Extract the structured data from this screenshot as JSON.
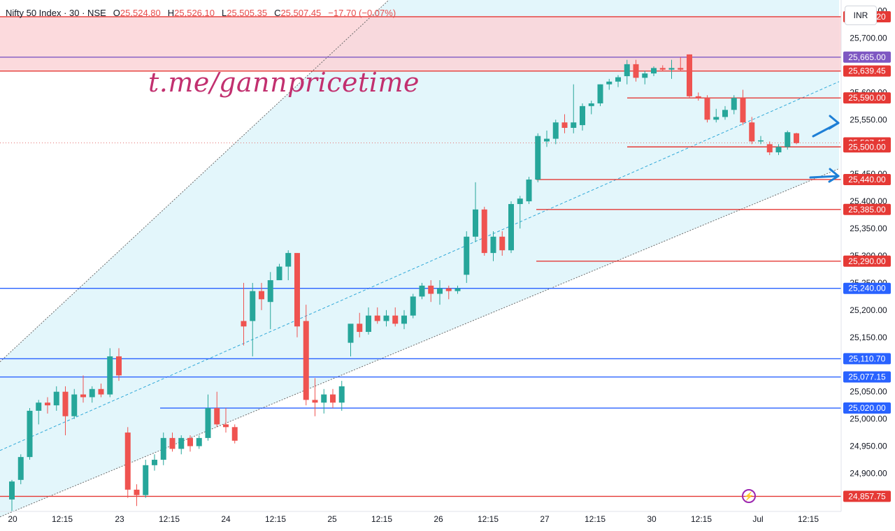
{
  "header": {
    "symbol": "Nifty 50 Index · 30 · NSE",
    "o_label": "O",
    "o_value": "25,524.80",
    "h_label": "H",
    "h_value": "25,526.10",
    "l_label": "L",
    "l_value": "25,505.35",
    "c_label": "C",
    "c_value": "25,507.45",
    "change": "−17.70 (−0.07%)"
  },
  "currency_button": "INR",
  "watermark": "t.me/gannpricetime",
  "lightning_icon": "lightning-icon",
  "colors": {
    "up": "#26a69a",
    "down": "#ef5350",
    "channel_fill": "#e3f6fb",
    "resistance_zone": "#fbd3d7",
    "red_level": "#e53935",
    "blue_level": "#2962ff",
    "purple_level": "#7e57c2",
    "arrow": "#1e7fd6",
    "brand": "#c2306f"
  },
  "chart_data": {
    "type": "candlestick",
    "interval": "30",
    "ylim": [
      24830,
      25770
    ],
    "y_ticks": [
      24900,
      24950,
      25000,
      25050,
      25150,
      25200,
      25250,
      25300,
      25350,
      25400,
      25450,
      25550,
      25600,
      25700,
      25750
    ],
    "x_tick_labels": [
      "20",
      "12:15",
      "23",
      "12:15",
      "24",
      "12:15",
      "25",
      "12:15",
      "26",
      "12:15",
      "27",
      "12:15",
      "30",
      "12:15",
      "Jul",
      "12:15"
    ],
    "candles": [
      [
        24852,
        24888,
        24830,
        24885
      ],
      [
        24888,
        24935,
        24880,
        24930
      ],
      [
        24930,
        25020,
        24925,
        25015
      ],
      [
        25015,
        25035,
        24990,
        25030
      ],
      [
        25030,
        25040,
        25010,
        25025
      ],
      [
        25025,
        25060,
        25015,
        25050
      ],
      [
        25050,
        25060,
        24970,
        25005
      ],
      [
        25005,
        25055,
        25000,
        25045
      ],
      [
        25045,
        25080,
        25030,
        25040
      ],
      [
        25040,
        25060,
        25030,
        25055
      ],
      [
        25055,
        25065,
        25040,
        25045
      ],
      [
        25045,
        25130,
        25040,
        25115
      ],
      [
        25115,
        25130,
        25070,
        25080
      ],
      [
        24975,
        24985,
        24855,
        24870
      ],
      [
        24870,
        24880,
        24840,
        24860
      ],
      [
        24860,
        24925,
        24855,
        24915
      ],
      [
        24915,
        24935,
        24905,
        24925
      ],
      [
        24925,
        24975,
        24915,
        24965
      ],
      [
        24965,
        24975,
        24940,
        24945
      ],
      [
        24945,
        24970,
        24935,
        24965
      ],
      [
        24965,
        24970,
        24940,
        24950
      ],
      [
        24950,
        24970,
        24945,
        24965
      ],
      [
        24965,
        25045,
        24960,
        25020
      ],
      [
        25020,
        25050,
        24985,
        24990
      ],
      [
        24990,
        25020,
        24975,
        24985
      ],
      [
        24985,
        24990,
        24955,
        24960
      ],
      [
        25180,
        25250,
        25135,
        25170
      ],
      [
        25180,
        25250,
        25115,
        25235
      ],
      [
        25235,
        25250,
        25200,
        25220
      ],
      [
        25215,
        25270,
        25165,
        25255
      ],
      [
        25255,
        25285,
        25255,
        25280
      ],
      [
        25280,
        25310,
        25255,
        25305
      ],
      [
        25305,
        25305,
        25150,
        25170
      ],
      [
        25180,
        25210,
        25025,
        25035
      ],
      [
        25035,
        25075,
        25005,
        25030
      ],
      [
        25030,
        25055,
        25010,
        25045
      ],
      [
        25045,
        25055,
        25020,
        25030
      ],
      [
        25030,
        25070,
        25015,
        25060
      ],
      [
        25140,
        25170,
        25115,
        25175
      ],
      [
        25175,
        25195,
        25150,
        25160
      ],
      [
        25160,
        25205,
        25155,
        25190
      ],
      [
        25190,
        25205,
        25175,
        25180
      ],
      [
        25180,
        25200,
        25170,
        25190
      ],
      [
        25190,
        25205,
        25170,
        25175
      ],
      [
        25175,
        25200,
        25165,
        25190
      ],
      [
        25190,
        25230,
        25185,
        25225
      ],
      [
        25225,
        25250,
        25220,
        25245
      ],
      [
        25245,
        25255,
        25215,
        25230
      ],
      [
        25230,
        25255,
        25210,
        25240
      ],
      [
        25240,
        25245,
        25220,
        25235
      ],
      [
        25235,
        25245,
        25230,
        25240
      ],
      [
        25265,
        25345,
        25250,
        25335
      ],
      [
        25335,
        25435,
        25325,
        25385
      ],
      [
        25385,
        25390,
        25300,
        25305
      ],
      [
        25305,
        25345,
        25290,
        25335
      ],
      [
        25335,
        25345,
        25300,
        25310
      ],
      [
        25310,
        25400,
        25305,
        25395
      ],
      [
        25395,
        25410,
        25350,
        25405
      ],
      [
        25400,
        25445,
        25395,
        25440
      ],
      [
        25440,
        25525,
        25435,
        25520
      ],
      [
        25510,
        25530,
        25500,
        25515
      ],
      [
        25515,
        25550,
        25505,
        25545
      ],
      [
        25545,
        25560,
        25525,
        25535
      ],
      [
        25535,
        25615,
        25525,
        25545
      ],
      [
        25540,
        25580,
        25530,
        25575
      ],
      [
        25575,
        25585,
        25560,
        25580
      ],
      [
        25580,
        25615,
        25575,
        25615
      ],
      [
        25615,
        25625,
        25605,
        25620
      ],
      [
        25620,
        25632,
        25610,
        25628
      ],
      [
        25630,
        25660,
        25615,
        25652
      ],
      [
        25652,
        25660,
        25620,
        25627
      ],
      [
        25627,
        25640,
        25615,
        25635
      ],
      [
        25635,
        25648,
        25630,
        25645
      ],
      [
        25645,
        25650,
        25640,
        25642
      ],
      [
        25642,
        25660,
        25625,
        25645
      ],
      [
        25645,
        25665,
        25640,
        25642
      ],
      [
        25670,
        25670,
        25590,
        25593
      ],
      [
        25593,
        25600,
        25585,
        25590
      ],
      [
        25590,
        25595,
        25545,
        25550
      ],
      [
        25550,
        25570,
        25545,
        25555
      ],
      [
        25555,
        25575,
        25550,
        25568
      ],
      [
        25568,
        25595,
        25560,
        25590
      ],
      [
        25590,
        25605,
        25540,
        25545
      ],
      [
        25545,
        25555,
        25505,
        25510
      ],
      [
        25510,
        25520,
        25505,
        25512
      ],
      [
        25505,
        25510,
        25485,
        25490
      ],
      [
        25490,
        25505,
        25485,
        25500
      ],
      [
        25500,
        25530,
        25495,
        25527
      ],
      [
        25525,
        25526,
        25505,
        25507
      ]
    ],
    "levels": [
      {
        "price": 25739.2,
        "label": "25,739.20",
        "kind": "red"
      },
      {
        "price": 25665.0,
        "label": "25,665.00",
        "kind": "purple"
      },
      {
        "price": 25639.45,
        "label": "25,639.45",
        "kind": "red"
      },
      {
        "price": 25590.0,
        "label": "25,590.00",
        "kind": "red"
      },
      {
        "price": 25507.45,
        "label": "25,507.45",
        "kind": "last"
      },
      {
        "price": 25500.0,
        "label": "25,500.00",
        "kind": "red"
      },
      {
        "price": 25440.0,
        "label": "25,440.00",
        "kind": "red"
      },
      {
        "price": 25385.0,
        "label": "25,385.00",
        "kind": "red"
      },
      {
        "price": 25290.0,
        "label": "25,290.00",
        "kind": "red"
      },
      {
        "price": 25240.0,
        "label": "25,240.00",
        "kind": "blue"
      },
      {
        "price": 25110.7,
        "label": "25,110.70",
        "kind": "blue"
      },
      {
        "price": 25077.15,
        "label": "25,077.15",
        "kind": "blue"
      },
      {
        "price": 25020.0,
        "label": "25,020.00",
        "kind": "blue"
      },
      {
        "price": 24857.75,
        "label": "24,857.75",
        "kind": "red"
      }
    ],
    "resistance_zone": [
      25639.45,
      25739.2
    ],
    "channel": {
      "upper": [
        [
          0,
          25105
        ],
        [
          1200,
          26540
        ]
      ],
      "middle": [
        [
          0,
          24942
        ],
        [
          1200,
          25620
        ]
      ],
      "lower": [
        [
          0,
          24820
        ],
        [
          1200,
          25460
        ]
      ]
    }
  }
}
